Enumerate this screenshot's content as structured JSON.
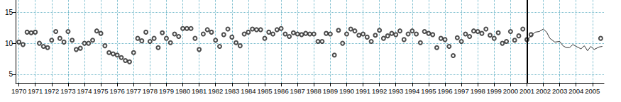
{
  "chart_data": {
    "type": "scatter",
    "xlim": [
      1969.8,
      2005.7
    ],
    "xticks": [
      1970,
      1971,
      1972,
      1973,
      1974,
      1975,
      1976,
      1977,
      1978,
      1979,
      1980,
      1981,
      1982,
      1983,
      1984,
      1985,
      1986,
      1987,
      1988,
      1989,
      1990,
      1991,
      1992,
      1993,
      1994,
      1995,
      1996,
      1997,
      1998,
      1999,
      2000,
      2001,
      2002,
      2003,
      2004,
      2005
    ],
    "ylim": [
      3.6,
      17
    ],
    "yticks": [
      5,
      10,
      15
    ],
    "grid": true,
    "vline": 2001,
    "series": [
      {
        "type": "scatter",
        "marker": "open_circle",
        "color": "#222222",
        "x": [
          1970,
          1970.25,
          1970.5,
          1970.75,
          1971,
          1971.25,
          1971.5,
          1971.75,
          1972,
          1972.25,
          1972.5,
          1972.75,
          1973,
          1973.25,
          1973.5,
          1973.75,
          1974,
          1974.25,
          1974.5,
          1974.75,
          1975,
          1975.25,
          1975.5,
          1975.75,
          1976,
          1976.25,
          1976.5,
          1976.75,
          1977,
          1977.25,
          1977.5,
          1977.75,
          1978,
          1978.25,
          1978.5,
          1978.75,
          1979,
          1979.25,
          1979.5,
          1979.75,
          1980,
          1980.25,
          1980.5,
          1980.75,
          1981,
          1981.25,
          1981.5,
          1981.75,
          1982,
          1982.25,
          1982.5,
          1982.75,
          1983,
          1983.25,
          1983.5,
          1983.75,
          1984,
          1984.25,
          1984.5,
          1984.75,
          1985,
          1985.25,
          1985.5,
          1985.75,
          1986,
          1986.25,
          1986.5,
          1986.75,
          1987,
          1987.25,
          1987.5,
          1987.75,
          1988,
          1988.25,
          1988.5,
          1988.75,
          1989,
          1989.25,
          1989.5,
          1989.75,
          1990,
          1990.25,
          1990.5,
          1990.75,
          1991,
          1991.25,
          1991.5,
          1991.75,
          1992,
          1992.25,
          1992.5,
          1992.75,
          1993,
          1993.25,
          1993.5,
          1993.75,
          1994,
          1994.25,
          1994.5,
          1994.75,
          1995,
          1995.25,
          1995.5,
          1995.75,
          1996,
          1996.25,
          1996.5,
          1996.75,
          1997,
          1997.25,
          1997.5,
          1997.75,
          1998,
          1998.25,
          1998.5,
          1998.75,
          1999,
          1999.25,
          1999.5,
          1999.75,
          2000,
          2000.25,
          2000.5,
          2000.75,
          2001,
          2001.25,
          2005.5
        ],
        "values": [
          10.2,
          9.8,
          11.8,
          11.7,
          11.8,
          10,
          9.5,
          9.3,
          10.5,
          11.9,
          10.8,
          10.2,
          11.9,
          10.5,
          9,
          9.2,
          10,
          10,
          10.5,
          12,
          11.6,
          9.6,
          8.5,
          8.3,
          8.1,
          7.7,
          7.2,
          7,
          8.5,
          10.8,
          10.4,
          11.8,
          10.3,
          10.8,
          9.3,
          11.7,
          10.8,
          10.1,
          11.5,
          11.1,
          12.4,
          12.4,
          12.4,
          10.8,
          9,
          11.5,
          12.2,
          11.8,
          10.5,
          9.5,
          11.4,
          12.3,
          11,
          10.1,
          9.6,
          11.5,
          11.8,
          12.3,
          12.2,
          12.2,
          10.8,
          11.8,
          11.5,
          12.2,
          12.4,
          11.5,
          11.1,
          11.7,
          11.5,
          11.4,
          11.6,
          11.5,
          11.5,
          10.3,
          10.3,
          11.6,
          11.5,
          8.1,
          12.1,
          10,
          11.5,
          12.3,
          12,
          11.3,
          11.5,
          11,
          10.3,
          11.3,
          12.1,
          10.8,
          11.2,
          11.6,
          11.4,
          12,
          10.6,
          11.5,
          12,
          11.5,
          10.1,
          11.9,
          11.6,
          11.4,
          9.3,
          10.8,
          10.6,
          9.5,
          8,
          10.9,
          10.3,
          11.5,
          11.1,
          12,
          11.9,
          11.6,
          12.3,
          11.3,
          10.8,
          11.7,
          10,
          10.3,
          11.9,
          10.5,
          11.2,
          12.3,
          10.6,
          11.4,
          10.8
        ]
      },
      {
        "type": "line",
        "line_style": "solid",
        "color": "#333333",
        "x": [
          2001,
          2001.25,
          2001.5,
          2001.75,
          2002,
          2002.2,
          2002.4,
          2002.7,
          2003,
          2003.2,
          2003.4,
          2003.6,
          2003.8,
          2004,
          2004.3,
          2004.5,
          2004.7,
          2004.9,
          2005.1,
          2005.4,
          2005.6
        ],
        "values": [
          10.5,
          11.2,
          11.8,
          11.9,
          12.3,
          11.8,
          10.8,
          10.2,
          10.3,
          9.6,
          9.3,
          9.3,
          9.8,
          9.5,
          9.1,
          9.6,
          8.8,
          9.5,
          9,
          9.4,
          9.5
        ]
      }
    ]
  }
}
